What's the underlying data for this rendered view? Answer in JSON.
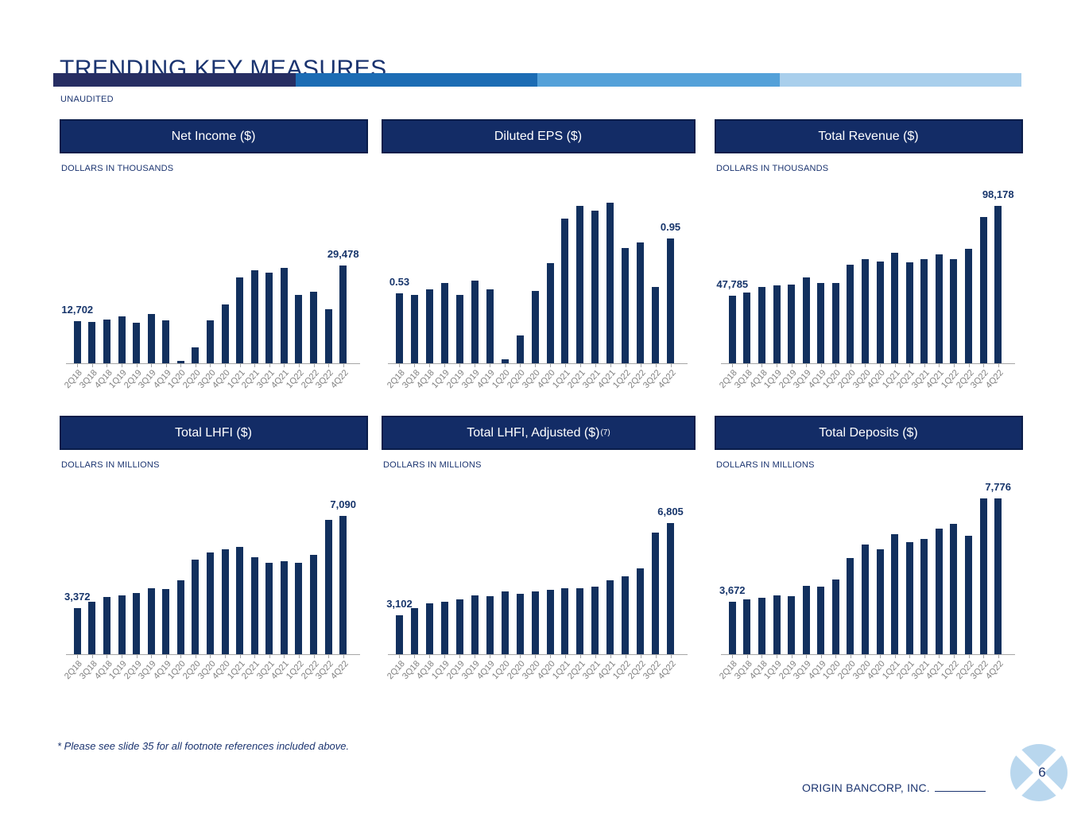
{
  "header": {
    "title": "TRENDING KEY MEASURES",
    "unaudited": "UNAUDITED"
  },
  "colors": {
    "navy_text": "#1b3470",
    "banner_bg": "#132c66",
    "banner_border": "#0a1d4a",
    "bar_navy": "#12305e",
    "axis_gray": "#a6a6a6",
    "x_label_gray": "#7f7f7f",
    "logo_light_blue": "#b9d7ee",
    "gradient": [
      "#272e63",
      "#1c6cb4",
      "#54a1d9",
      "#a9cfec"
    ]
  },
  "chart_data": [
    {
      "type": "bar",
      "title": "Net Income ($)",
      "title_superscript": "",
      "units": "DOLLARS IN THOUSANDS",
      "categories": [
        "2Q18",
        "3Q18",
        "4Q18",
        "1Q19",
        "2Q19",
        "3Q19",
        "4Q19",
        "1Q20",
        "2Q20",
        "3Q20",
        "4Q20",
        "1Q21",
        "2Q21",
        "3Q21",
        "4Q21",
        "1Q22",
        "2Q22",
        "3Q22",
        "4Q22"
      ],
      "values": [
        12702,
        12500,
        13100,
        14000,
        12300,
        14800,
        12850,
        600,
        4700,
        13000,
        17600,
        25700,
        28000,
        27200,
        28600,
        20600,
        21600,
        16200,
        29478
      ],
      "first_label": "12,702",
      "last_label": "29,478",
      "ylim": [
        0,
        49000
      ],
      "bar_color": "#12305e",
      "grid": false,
      "legend": "none"
    },
    {
      "type": "bar",
      "title": "Diluted EPS ($)",
      "title_superscript": "",
      "units": "",
      "categories": [
        "2Q18",
        "3Q18",
        "4Q18",
        "1Q19",
        "2Q19",
        "3Q19",
        "4Q19",
        "1Q20",
        "2Q20",
        "3Q20",
        "4Q20",
        "1Q21",
        "2Q21",
        "3Q21",
        "4Q21",
        "1Q22",
        "2Q22",
        "3Q22",
        "4Q22"
      ],
      "values": [
        0.53,
        0.52,
        0.56,
        0.61,
        0.52,
        0.63,
        0.56,
        0.03,
        0.21,
        0.55,
        0.76,
        1.1,
        1.2,
        1.16,
        1.22,
        0.88,
        0.92,
        0.58,
        0.95
      ],
      "first_label": "0.53",
      "last_label": "0.95",
      "ylim": [
        0,
        1.24
      ],
      "bar_color": "#12305e",
      "grid": false,
      "legend": "none"
    },
    {
      "type": "bar",
      "title": "Total Revenue ($)",
      "title_superscript": "",
      "units": "DOLLARS IN THOUSANDS",
      "categories": [
        "2Q18",
        "3Q18",
        "4Q18",
        "1Q19",
        "2Q19",
        "3Q19",
        "4Q19",
        "1Q20",
        "2Q20",
        "3Q20",
        "4Q20",
        "1Q21",
        "2Q21",
        "3Q21",
        "4Q21",
        "1Q22",
        "2Q22",
        "3Q22",
        "4Q22"
      ],
      "values": [
        47785,
        49800,
        52900,
        53500,
        53900,
        57900,
        55000,
        54800,
        65200,
        68200,
        67200,
        72000,
        66600,
        68200,
        70900,
        68400,
        74200,
        91800,
        98178
      ],
      "first_label": "47,785",
      "last_label": "98,178",
      "ylim": [
        10000,
        101300
      ],
      "bar_color": "#12305e",
      "grid": false,
      "legend": "none"
    },
    {
      "type": "bar",
      "title": "Total LHFI ($)",
      "title_superscript": "",
      "units": "DOLLARS IN MILLIONS",
      "categories": [
        "2Q18",
        "3Q18",
        "4Q18",
        "1Q19",
        "2Q19",
        "3Q19",
        "4Q19",
        "1Q20",
        "2Q20",
        "3Q20",
        "4Q20",
        "1Q21",
        "2Q21",
        "3Q21",
        "4Q21",
        "1Q22",
        "2Q22",
        "3Q22",
        "4Q22"
      ],
      "values": [
        3372,
        3610,
        3825,
        3870,
        3990,
        4180,
        4150,
        4505,
        5330,
        5610,
        5750,
        5825,
        5435,
        5200,
        5255,
        5200,
        5525,
        6920,
        7090
      ],
      "first_label": "3,372",
      "last_label": "7,090",
      "ylim": [
        1500,
        7930
      ],
      "bar_color": "#12305e",
      "grid": false,
      "legend": "none"
    },
    {
      "type": "bar",
      "title": "Total LHFI, Adjusted ($)",
      "title_superscript": "(7)",
      "units": "DOLLARS IN MILLIONS",
      "categories": [
        "2Q18",
        "3Q18",
        "4Q18",
        "1Q19",
        "2Q19",
        "3Q19",
        "4Q19",
        "1Q20",
        "2Q20",
        "3Q20",
        "4Q20",
        "1Q21",
        "2Q21",
        "3Q21",
        "4Q21",
        "1Q22",
        "2Q22",
        "3Q22",
        "4Q22"
      ],
      "values": [
        3102,
        3390,
        3575,
        3660,
        3745,
        3905,
        3885,
        4070,
        3980,
        4070,
        4120,
        4195,
        4185,
        4260,
        4510,
        4670,
        4980,
        6430,
        6805
      ],
      "first_label": "3,102",
      "last_label": "6,805",
      "ylim": [
        1550,
        7920
      ],
      "bar_color": "#12305e",
      "grid": false,
      "legend": "none"
    },
    {
      "type": "bar",
      "title": "Total Deposits ($)",
      "title_superscript": "",
      "units": "DOLLARS IN MILLIONS",
      "categories": [
        "2Q18",
        "3Q18",
        "4Q18",
        "1Q19",
        "2Q19",
        "3Q19",
        "4Q19",
        "1Q20",
        "2Q20",
        "3Q20",
        "4Q20",
        "1Q21",
        "2Q21",
        "3Q21",
        "4Q21",
        "1Q22",
        "2Q22",
        "3Q22",
        "4Q22"
      ],
      "values": [
        3672,
        3760,
        3810,
        3905,
        3865,
        4290,
        4260,
        4560,
        5395,
        5950,
        5745,
        6345,
        6025,
        6165,
        6570,
        6760,
        6300,
        7765,
        7776
      ],
      "first_label": "3,672",
      "last_label": "7,776",
      "ylim": [
        1570,
        7900
      ],
      "bar_color": "#12305e",
      "grid": false,
      "legend": "none"
    }
  ],
  "footer": {
    "footnote": "* Please see slide 35 for all footnote references included above.",
    "company": "ORIGIN BANCORP, INC.",
    "page_number": "6"
  }
}
